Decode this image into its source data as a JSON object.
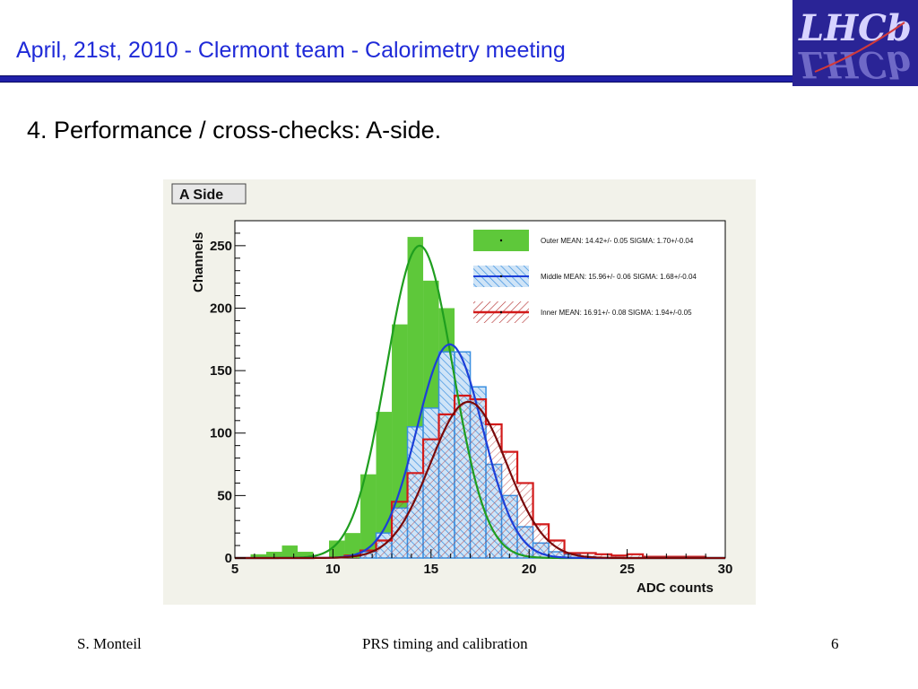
{
  "header": {
    "title": "April, 21st,  2010 - Clermont team - Calorimetry meeting",
    "logo_text": "LHCb"
  },
  "slide": {
    "heading": "4. Performance /  cross-checks: A-side."
  },
  "footer": {
    "author": "S. Monteil",
    "topic": "PRS timing and calibration",
    "page": "6"
  },
  "colors": {
    "title_blue": "#1f2ad8",
    "rule_blue": "#2020a8",
    "outer_fill": "#5ec83a",
    "outer_fit": "#1f9e1f",
    "middle_fill": "#3a8fe0",
    "middle_fit": "#1c3fd8",
    "inner_line": "#d21a1a",
    "inner_fit": "#7a0a0a"
  },
  "chart_data": {
    "type": "histogram",
    "title": "A Side",
    "xlabel": "ADC counts",
    "ylabel": "Channels",
    "xlim": [
      5,
      30
    ],
    "ylim": [
      0,
      270
    ],
    "x_ticks": [
      5,
      10,
      15,
      20,
      25,
      30
    ],
    "y_ticks": [
      0,
      50,
      100,
      150,
      200,
      250
    ],
    "bin_width": 0.8,
    "grid": false,
    "legend_position": "top-right",
    "series": [
      {
        "name": "Outer",
        "legend": "Outer  MEAN: 14.42+/- 0.05  SIGMA: 1.70+/-0.04",
        "style": "filled",
        "color": "#5ec83a",
        "bins_start": [
          5.8,
          6.6,
          7.4,
          8.2,
          9.0,
          9.8,
          10.6,
          11.4,
          12.2,
          13.0,
          13.8,
          14.6,
          15.4,
          16.2,
          17.0,
          17.8,
          18.6,
          19.4,
          20.2,
          21.0
        ],
        "counts": [
          3,
          5,
          10,
          5,
          0,
          14,
          20,
          67,
          117,
          187,
          257,
          222,
          200,
          120,
          60,
          27,
          12,
          5,
          2,
          1
        ],
        "fit": {
          "mean": 14.42,
          "sigma": 1.7,
          "peak": 250,
          "color": "#1f9e1f"
        }
      },
      {
        "name": "Middle",
        "legend": "Middle MEAN: 15.96+/- 0.06  SIGMA: 1.68+/-0.04",
        "style": "hatched",
        "color": "#3a8fe0",
        "bins_start": [
          11.4,
          12.2,
          13.0,
          13.8,
          14.6,
          15.4,
          16.2,
          17.0,
          17.8,
          18.6,
          19.4,
          20.2,
          21.0,
          21.8,
          22.6
        ],
        "counts": [
          5,
          20,
          40,
          105,
          120,
          165,
          165,
          137,
          75,
          50,
          25,
          12,
          5,
          3,
          1
        ],
        "fit": {
          "mean": 15.96,
          "sigma": 1.68,
          "peak": 171,
          "color": "#1c3fd8"
        }
      },
      {
        "name": "Inner",
        "legend": "Inner  MEAN: 16.91+/- 0.08  SIGMA: 1.94+/-0.05",
        "style": "hatched-outline",
        "color": "#d21a1a",
        "bins_start": [
          10.6,
          11.4,
          12.2,
          13.0,
          13.8,
          14.6,
          15.4,
          16.2,
          17.0,
          17.8,
          18.6,
          19.4,
          20.2,
          21.0,
          21.8,
          22.6,
          23.4,
          24.2,
          25.0,
          25.8,
          26.6,
          27.4,
          28.2
        ],
        "counts": [
          2,
          6,
          14,
          45,
          68,
          95,
          115,
          130,
          127,
          107,
          85,
          60,
          27,
          14,
          4,
          4,
          3,
          2,
          3,
          1,
          1,
          1,
          1
        ],
        "fit": {
          "mean": 16.91,
          "sigma": 1.94,
          "peak": 125,
          "color": "#7a0a0a"
        }
      }
    ]
  }
}
